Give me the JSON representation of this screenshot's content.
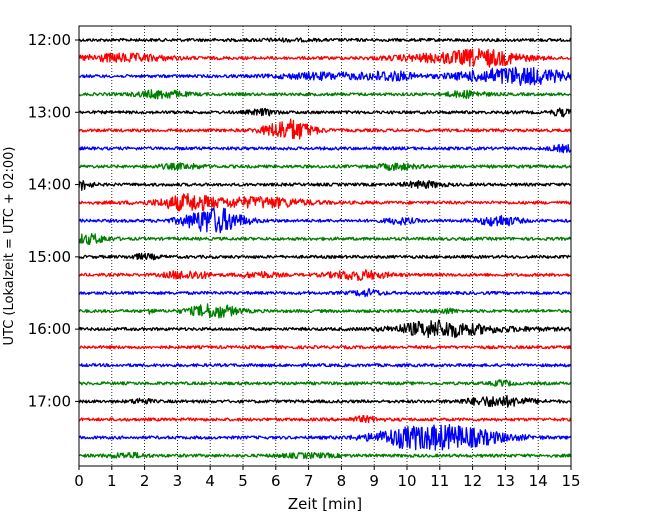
{
  "chart_data": {
    "type": "line",
    "title": "",
    "xlabel": "Zeit  [min]",
    "ylabel": "UTC (Lokalzeit = UTC + 02:00)",
    "xlim": [
      0,
      15
    ],
    "x_ticks": [
      "0",
      "1",
      "2",
      "3",
      "4",
      "5",
      "6",
      "7",
      "8",
      "9",
      "10",
      "11",
      "12",
      "13",
      "14",
      "15"
    ],
    "y_tick_labels": [
      "12:00",
      "13:00",
      "14:00",
      "15:00",
      "16:00",
      "17:00"
    ],
    "grid_x": true,
    "trace_count": 24,
    "trace_interval_min": 15,
    "trace_colors": [
      "#000000",
      "#ff0000",
      "#0000ff",
      "#008000"
    ],
    "series": [
      {
        "start": "12:00",
        "bursts": [
          [
            6.3,
            0.6,
            0.2
          ]
        ]
      },
      {
        "start": "12:15",
        "bursts": [
          [
            1.3,
            1.0,
            1.0
          ],
          [
            10.8,
            1.0,
            0.8
          ],
          [
            12.4,
            0.8,
            2.0
          ]
        ]
      },
      {
        "start": "12:30",
        "bursts": [
          [
            7.5,
            1.0,
            0.8
          ],
          [
            9.5,
            0.5,
            1.2
          ],
          [
            12.8,
            1.0,
            1.6
          ],
          [
            14.0,
            0.8,
            1.2
          ]
        ]
      },
      {
        "start": "12:45",
        "bursts": [
          [
            2.5,
            0.5,
            1.0
          ],
          [
            11.8,
            0.4,
            0.8
          ]
        ]
      },
      {
        "start": "13:00",
        "bursts": [
          [
            5.6,
            0.3,
            0.7
          ],
          [
            14.7,
            0.2,
            0.9
          ]
        ]
      },
      {
        "start": "13:15",
        "bursts": [
          [
            6.4,
            0.5,
            2.8
          ]
        ]
      },
      {
        "start": "13:30",
        "bursts": [
          [
            14.8,
            0.3,
            0.8
          ]
        ]
      },
      {
        "start": "13:45",
        "bursts": [
          [
            3.1,
            0.5,
            0.6
          ],
          [
            9.7,
            0.4,
            0.8
          ]
        ]
      },
      {
        "start": "14:00",
        "bursts": [
          [
            0.1,
            0.2,
            1.2
          ],
          [
            10.5,
            0.4,
            0.8
          ]
        ]
      },
      {
        "start": "14:15",
        "bursts": [
          [
            3.3,
            0.5,
            1.6
          ],
          [
            4.4,
            1.5,
            0.8
          ],
          [
            5.8,
            0.8,
            0.8
          ]
        ]
      },
      {
        "start": "14:30",
        "bursts": [
          [
            4.1,
            0.6,
            3.5
          ],
          [
            9.8,
            0.3,
            0.8
          ],
          [
            12.8,
            0.4,
            1.4
          ]
        ]
      },
      {
        "start": "14:45",
        "bursts": [
          [
            0.3,
            0.4,
            1.2
          ]
        ]
      },
      {
        "start": "15:00",
        "bursts": [
          [
            2.0,
            0.3,
            0.6
          ]
        ]
      },
      {
        "start": "15:15",
        "bursts": [
          [
            3.0,
            0.3,
            0.8
          ],
          [
            3.6,
            0.3,
            0.8
          ],
          [
            8.5,
            0.6,
            1.2
          ],
          [
            5.5,
            0.4,
            0.7
          ]
        ]
      },
      {
        "start": "15:30",
        "bursts": [
          [
            8.8,
            0.3,
            0.8
          ]
        ]
      },
      {
        "start": "15:45",
        "bursts": [
          [
            2.2,
            0.05,
            1.5
          ],
          [
            4.1,
            0.5,
            1.8
          ],
          [
            11.2,
            0.2,
            0.6
          ]
        ]
      },
      {
        "start": "16:00",
        "bursts": [
          [
            10.9,
            0.8,
            1.8
          ],
          [
            12.0,
            1.5,
            0.6
          ]
        ]
      },
      {
        "start": "16:15",
        "bursts": []
      },
      {
        "start": "16:30",
        "bursts": []
      },
      {
        "start": "16:45",
        "bursts": [
          [
            12.9,
            0.2,
            0.7
          ]
        ]
      },
      {
        "start": "17:00",
        "bursts": [
          [
            1.9,
            0.2,
            0.7
          ],
          [
            12.8,
            0.7,
            1.3
          ]
        ]
      },
      {
        "start": "17:15",
        "bursts": [
          [
            8.7,
            0.3,
            0.7
          ]
        ]
      },
      {
        "start": "17:30",
        "bursts": [
          [
            11.1,
            1.2,
            3.2
          ],
          [
            9.8,
            0.6,
            0.8
          ]
        ]
      },
      {
        "start": "17:45",
        "bursts": [
          [
            1.5,
            0.4,
            0.6
          ],
          [
            7.0,
            0.6,
            0.5
          ]
        ]
      }
    ]
  }
}
